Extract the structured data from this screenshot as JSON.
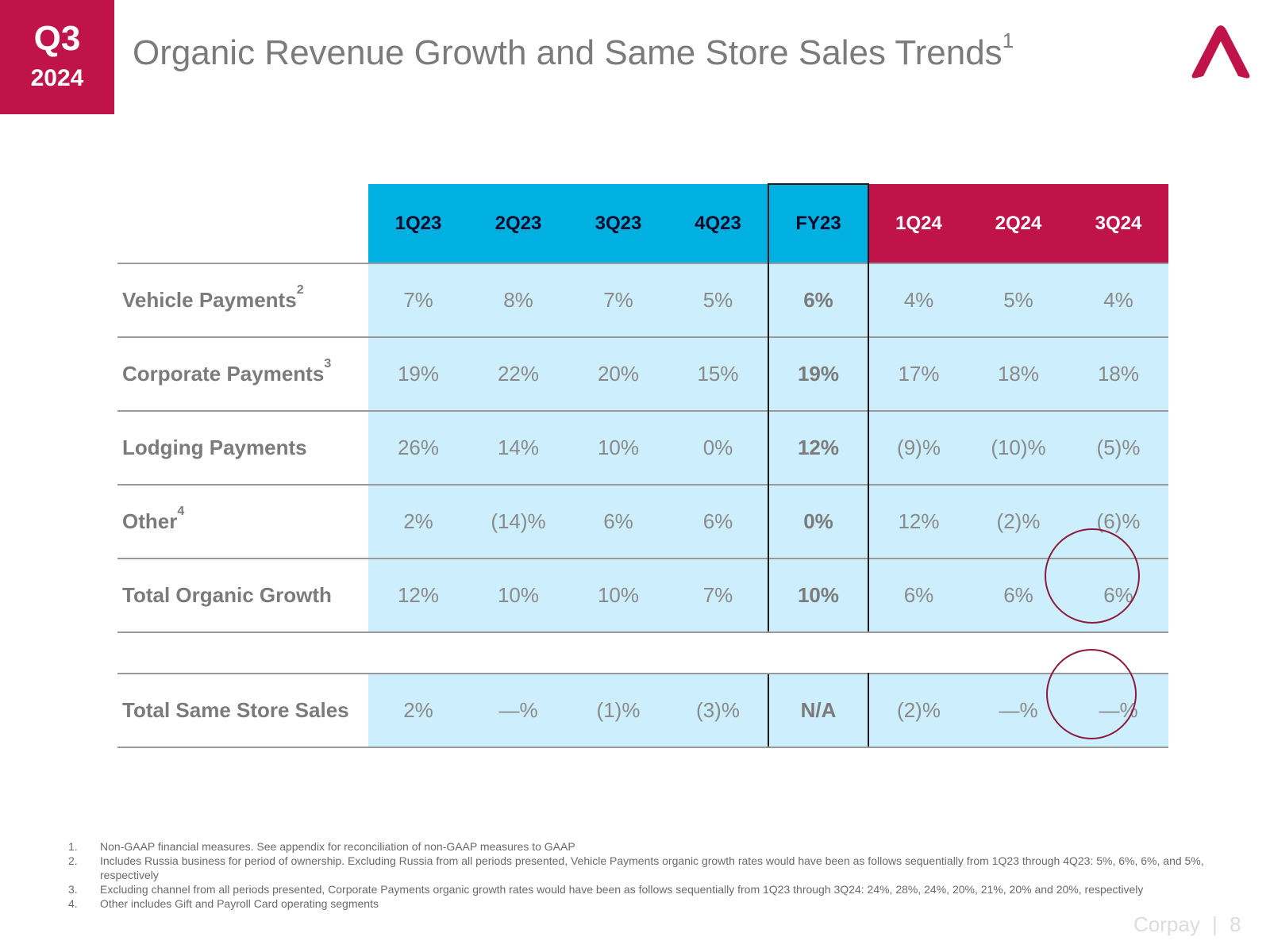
{
  "badge": {
    "quarter": "Q3",
    "year": "2024"
  },
  "title": {
    "text": "Organic Revenue Growth and Same Store Sales Trends",
    "sup": "1"
  },
  "logo": {
    "icon": "corpay-logo-icon",
    "color": "#c0134a"
  },
  "colors": {
    "header_blue": "#00b0e0",
    "header_red": "#c0134a",
    "cell_bg": "#cdeefc",
    "circle": "#8b1a3e"
  },
  "columns": [
    "1Q23",
    "2Q23",
    "3Q23",
    "4Q23",
    "FY23",
    "1Q24",
    "2Q24",
    "3Q24"
  ],
  "rows": [
    {
      "label": "Vehicle Payments",
      "sup": "2",
      "values": [
        "7%",
        "8%",
        "7%",
        "5%",
        "6%",
        "4%",
        "5%",
        "4%"
      ]
    },
    {
      "label": "Corporate Payments",
      "sup": "3",
      "values": [
        "19%",
        "22%",
        "20%",
        "15%",
        "19%",
        "17%",
        "18%",
        "18%"
      ]
    },
    {
      "label": "Lodging Payments",
      "sup": "",
      "values": [
        "26%",
        "14%",
        "10%",
        "0%",
        "12%",
        "(9)%",
        "(10)%",
        "(5)%"
      ]
    },
    {
      "label": "Other",
      "sup": "4",
      "values": [
        "2%",
        "(14)%",
        "6%",
        "6%",
        "0%",
        "12%",
        "(2)%",
        "(6)%"
      ]
    },
    {
      "label": "Total Organic Growth",
      "sup": "",
      "values": [
        "12%",
        "10%",
        "10%",
        "7%",
        "10%",
        "6%",
        "6%",
        "6%"
      ]
    }
  ],
  "same_store": {
    "label": "Total Same Store Sales",
    "values": [
      "2%",
      "—%",
      "(1)%",
      "(3)%",
      "N/A",
      "(2)%",
      "—%",
      "—%"
    ]
  },
  "footnotes": [
    {
      "n": "1.",
      "text": "Non-GAAP financial measures. See appendix for reconciliation of non-GAAP measures to GAAP"
    },
    {
      "n": "2.",
      "text": "Includes Russia business for period of ownership. Excluding Russia from all periods presented, Vehicle Payments organic growth rates would have been as follows sequentially from 1Q23 through 4Q23: 5%, 6%, 6%, and 5%, respectively"
    },
    {
      "n": "3.",
      "text": "Excluding channel from all periods presented, Corporate Payments organic growth rates would have been as follows sequentially from 1Q23 through 3Q24: 24%, 28%, 24%, 20%, 21%, 20% and 20%, respectively"
    },
    {
      "n": "4.",
      "text": "Other includes Gift and Payroll Card operating segments"
    }
  ],
  "footer": {
    "brand": "Corpay",
    "separator": "|",
    "page": "8"
  }
}
